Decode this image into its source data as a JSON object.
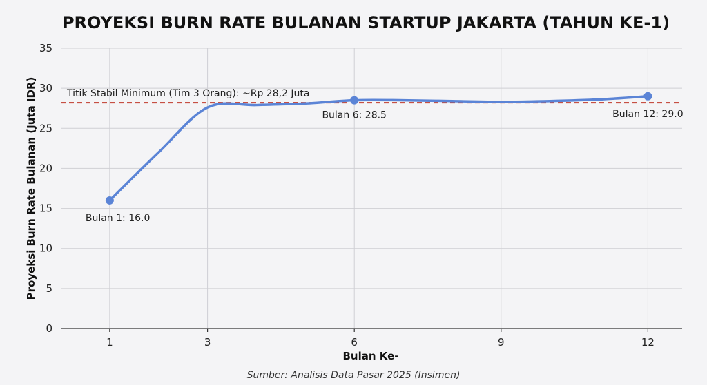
{
  "colors": {
    "line": "#5b84d6",
    "reference": "#c0392b",
    "grid": "#cfcfd4",
    "background": "#f4f4f6"
  },
  "chart_data": {
    "type": "line",
    "title": "PROYEKSI BURN RATE BULANAN STARTUP JAKARTA (TAHUN KE-1)",
    "xlabel": "Bulan Ke-",
    "ylabel": "Proyeksi Burn Rate Bulanan (Juta IDR)",
    "source": "Sumber: Analisis Data Pasar 2025 (Insimen)",
    "x_ticks": [
      1,
      3,
      6,
      9,
      12
    ],
    "y_ticks": [
      0,
      5,
      10,
      15,
      20,
      25,
      30,
      35
    ],
    "xlim": [
      0,
      12.7
    ],
    "ylim": [
      0,
      35
    ],
    "grid": true,
    "series": [
      {
        "x": [
          1,
          2,
          3,
          4,
          5,
          6,
          7,
          8,
          9,
          10,
          11,
          12
        ],
        "values": [
          16.0,
          22.0,
          27.6,
          27.9,
          28.1,
          28.5,
          28.5,
          28.4,
          28.3,
          28.4,
          28.6,
          29.0
        ]
      }
    ],
    "markers": [
      {
        "x": 1,
        "y": 16.0
      },
      {
        "x": 6,
        "y": 28.5
      },
      {
        "x": 12,
        "y": 29.0
      }
    ],
    "data_labels": [
      {
        "text": "Bulan 1: 16.0",
        "x": 1,
        "y": 16.0
      },
      {
        "text": "Bulan 6: 28.5",
        "x": 6,
        "y": 28.5
      },
      {
        "text": "Bulan 12: 29.0",
        "x": 12,
        "y": 29.0
      }
    ],
    "reference_line": {
      "y": 28.2,
      "label": "Titik Stabil Minimum (Tim 3 Orang): ~Rp 28,2 Juta"
    }
  }
}
